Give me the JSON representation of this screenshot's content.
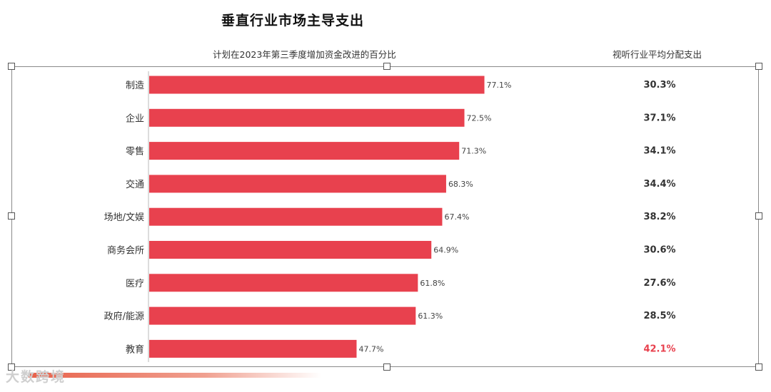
{
  "title": "垂直行业市场主导支出",
  "left_header": "计划在2023年第三季度增加资金改进的百分比",
  "right_header": "视听行业平均分配支出",
  "watermark": "大数跨境",
  "colors": {
    "bar": "#e8414e",
    "highlight": "#e8414e",
    "axis": "#d0d0d0"
  },
  "chart_data": {
    "type": "bar",
    "orientation": "horizontal",
    "title": "垂直行业市场主导支出",
    "xlabel": "",
    "ylabel": "",
    "xlim": [
      0,
      100
    ],
    "categories": [
      "制造",
      "企业",
      "零售",
      "交通",
      "场地/文娱",
      "商务会所",
      "医疗",
      "政府/能源",
      "教育"
    ],
    "series": [
      {
        "name": "计划在2023年第三季度增加资金改进的百分比",
        "values": [
          77.1,
          72.5,
          71.3,
          68.3,
          67.4,
          64.9,
          61.8,
          61.3,
          47.7
        ],
        "labels": [
          "77.1%",
          "72.5%",
          "71.3%",
          "68.3%",
          "67.4%",
          "64.9%",
          "61.8%",
          "61.3%",
          "47.7%"
        ]
      },
      {
        "name": "视听行业平均分配支出",
        "values": [
          30.3,
          37.1,
          34.1,
          34.4,
          38.2,
          30.6,
          27.6,
          28.5,
          42.1
        ],
        "labels": [
          "30.3%",
          "37.1%",
          "34.1%",
          "34.4%",
          "38.2%",
          "30.6%",
          "27.6%",
          "28.5%",
          "42.1%"
        ]
      }
    ],
    "highlight_index": 8,
    "grid": false,
    "legend": "none"
  }
}
